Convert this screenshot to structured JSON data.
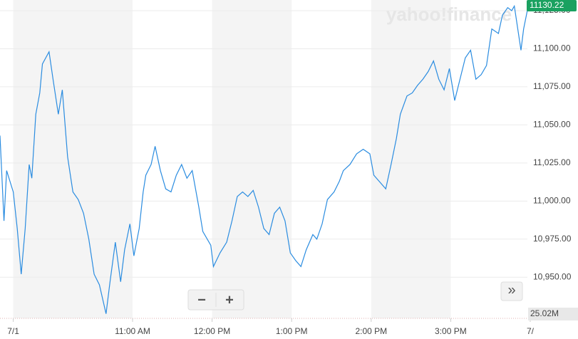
{
  "chart_data": {
    "type": "line",
    "watermark": "yahoo!finance",
    "x": [
      560,
      563,
      565,
      570,
      573,
      576,
      579,
      582,
      584,
      587,
      590,
      592,
      597,
      600,
      604,
      607,
      611,
      615,
      619,
      623,
      627,
      631,
      635,
      640,
      643,
      647,
      651,
      654,
      658,
      661,
      665,
      668,
      670,
      674,
      677,
      681,
      685,
      689,
      693,
      697,
      701,
      705,
      710,
      713,
      719,
      721,
      726,
      731,
      735,
      739,
      743,
      747,
      751,
      755,
      759,
      763,
      767,
      771,
      775,
      779,
      783,
      787,
      791,
      796,
      799,
      803,
      807,
      812,
      816,
      819,
      824,
      829,
      834,
      839,
      842,
      846,
      851,
      855,
      859,
      862,
      867,
      871,
      875,
      879,
      883,
      887,
      891,
      895,
      899,
      903,
      907,
      911,
      915,
      919,
      923,
      927,
      931,
      936,
      939,
      943,
      946,
      948,
      953,
      955,
      958
    ],
    "values": [
      11043,
      10987,
      11020,
      11006,
      10982,
      10952,
      10982,
      11024,
      11015,
      11057,
      11071,
      11090,
      11098,
      11080,
      11057,
      11073,
      11029,
      11006,
      11001,
      10992,
      10975,
      10952,
      10945,
      10926,
      10947,
      10973,
      10947,
      10968,
      10985,
      10964,
      10982,
      11006,
      11017,
      11024,
      11036,
      11020,
      11008,
      11006,
      11017,
      11024,
      11015,
      11020,
      10996,
      10980,
      10971,
      10957,
      10966,
      10973,
      10987,
      11003,
      11006,
      11003,
      11007,
      10996,
      10982,
      10978,
      10992,
      10996,
      10987,
      10966,
      10961,
      10957,
      10968,
      10978,
      10975,
      10985,
      11001,
      11006,
      11013,
      11020,
      11024,
      11031,
      11034,
      11031,
      11017,
      11013,
      11008,
      11024,
      11041,
      11057,
      11069,
      11071,
      11076,
      11080,
      11085,
      11092,
      11080,
      11073,
      11087,
      11066,
      11080,
      11094,
      11099,
      11080,
      11083,
      11089,
      11113,
      11110,
      11122,
      11127,
      11125,
      11128,
      11099,
      11113,
      11126
    ],
    "color": "#2a8ce0",
    "xlim": [
      560,
      960
    ],
    "ylim": [
      10923,
      11132
    ],
    "xticks": [
      {
        "value": 570,
        "label": "7/1"
      },
      {
        "value": 660,
        "label": "11:00 AM"
      },
      {
        "value": 720,
        "label": "12:00 PM"
      },
      {
        "value": 780,
        "label": "1:00 PM"
      },
      {
        "value": 840,
        "label": "2:00 PM"
      },
      {
        "value": 900,
        "label": "3:00 PM"
      },
      {
        "value": 960,
        "label": "7/"
      }
    ],
    "yticks": [
      {
        "value": 10950,
        "label": "10,950.00"
      },
      {
        "value": 10975,
        "label": "10,975.00"
      },
      {
        "value": 11000,
        "label": "11,000.00"
      },
      {
        "value": 11025,
        "label": "11,025.00"
      },
      {
        "value": 11050,
        "label": "11,050.00"
      },
      {
        "value": 11075,
        "label": "11,075.00"
      },
      {
        "value": 11100,
        "label": "11,100.00"
      },
      {
        "value": 11125,
        "label": "11,125.00"
      }
    ],
    "grid": true,
    "last_price": 11130.22,
    "last_price_color": "#1aa160",
    "volume_label": "25.02M",
    "zoom_out": "−",
    "zoom_in": "+",
    "expand": "»"
  }
}
